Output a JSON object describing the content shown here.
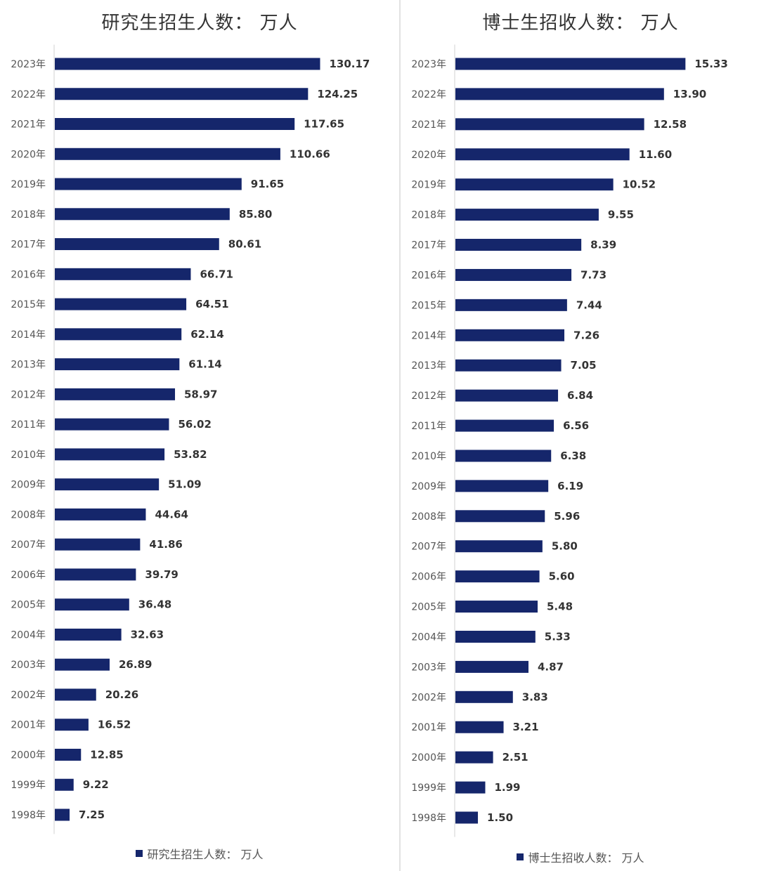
{
  "colors": {
    "bar": "#15266b",
    "background": "#ffffff"
  },
  "chart_data": [
    {
      "type": "bar",
      "orientation": "horizontal",
      "title": "研究生招生人数： 万人",
      "legend": "研究生招生人数： 万人",
      "legend_position": "bottom",
      "grid": false,
      "xlim": [
        0,
        140
      ],
      "categories": [
        "2023年",
        "2022年",
        "2021年",
        "2020年",
        "2019年",
        "2018年",
        "2017年",
        "2016年",
        "2015年",
        "2014年",
        "2013年",
        "2012年",
        "2011年",
        "2010年",
        "2009年",
        "2008年",
        "2007年",
        "2006年",
        "2005年",
        "2004年",
        "2003年",
        "2002年",
        "2001年",
        "2000年",
        "1999年",
        "1998年"
      ],
      "values": [
        130.17,
        124.25,
        117.65,
        110.66,
        91.65,
        85.8,
        80.61,
        66.71,
        64.51,
        62.14,
        61.14,
        58.97,
        56.02,
        53.82,
        51.09,
        44.64,
        41.86,
        39.79,
        36.48,
        32.63,
        26.89,
        20.26,
        16.52,
        12.85,
        9.22,
        7.25
      ],
      "value_labels": [
        "130.17",
        "124.25",
        "117.65",
        "110.66",
        "91.65",
        "85.80",
        "80.61",
        "66.71",
        "64.51",
        "62.14",
        "61.14",
        "58.97",
        "56.02",
        "53.82",
        "51.09",
        "44.64",
        "41.86",
        "39.79",
        "36.48",
        "32.63",
        "26.89",
        "20.26",
        "16.52",
        "12.85",
        "9.22",
        "7.25"
      ]
    },
    {
      "type": "bar",
      "orientation": "horizontal",
      "title": "博士生招收人数： 万人",
      "legend": "博士生招收人数： 万人",
      "legend_position": "bottom",
      "grid": false,
      "xlim": [
        0,
        17
      ],
      "categories": [
        "2023年",
        "2022年",
        "2021年",
        "2020年",
        "2019年",
        "2018年",
        "2017年",
        "2016年",
        "2015年",
        "2014年",
        "2013年",
        "2012年",
        "2011年",
        "2010年",
        "2009年",
        "2008年",
        "2007年",
        "2006年",
        "2005年",
        "2004年",
        "2003年",
        "2002年",
        "2001年",
        "2000年",
        "1999年",
        "1998年"
      ],
      "values": [
        15.33,
        13.9,
        12.58,
        11.6,
        10.52,
        9.55,
        8.39,
        7.73,
        7.44,
        7.26,
        7.05,
        6.84,
        6.56,
        6.38,
        6.19,
        5.96,
        5.8,
        5.6,
        5.48,
        5.33,
        4.87,
        3.83,
        3.21,
        2.51,
        1.99,
        1.5
      ],
      "value_labels": [
        "15.33",
        "13.90",
        "12.58",
        "11.60",
        "10.52",
        "9.55",
        "8.39",
        "7.73",
        "7.44",
        "7.26",
        "7.05",
        "6.84",
        "6.56",
        "6.38",
        "6.19",
        "5.96",
        "5.80",
        "5.60",
        "5.48",
        "5.33",
        "4.87",
        "3.83",
        "3.21",
        "2.51",
        "1.99",
        "1.50"
      ]
    }
  ]
}
